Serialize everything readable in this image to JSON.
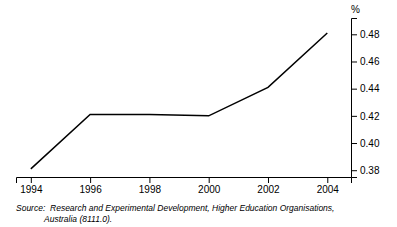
{
  "chart_data": {
    "type": "line",
    "x": [
      1994,
      1996,
      1998,
      2000,
      2002,
      2004
    ],
    "values": [
      0.381,
      0.421,
      0.421,
      0.42,
      0.441,
      0.481
    ],
    "color": "#000000",
    "xlim": [
      1993.5,
      2004.8
    ],
    "ylim": [
      0.375,
      0.492
    ],
    "xticks": [
      1994,
      1996,
      1998,
      2000,
      2002,
      2004
    ],
    "yticks": [
      0.38,
      {
        "value": 0.4,
        "label": "0.40"
      },
      0.42,
      0.44,
      0.46,
      0.48
    ],
    "y_label": "%",
    "annotations": [
      "Source:  Research and Experimental Development, Higher Education Organisations,",
      "            Australia (8111.0)."
    ],
    "grid": false
  }
}
